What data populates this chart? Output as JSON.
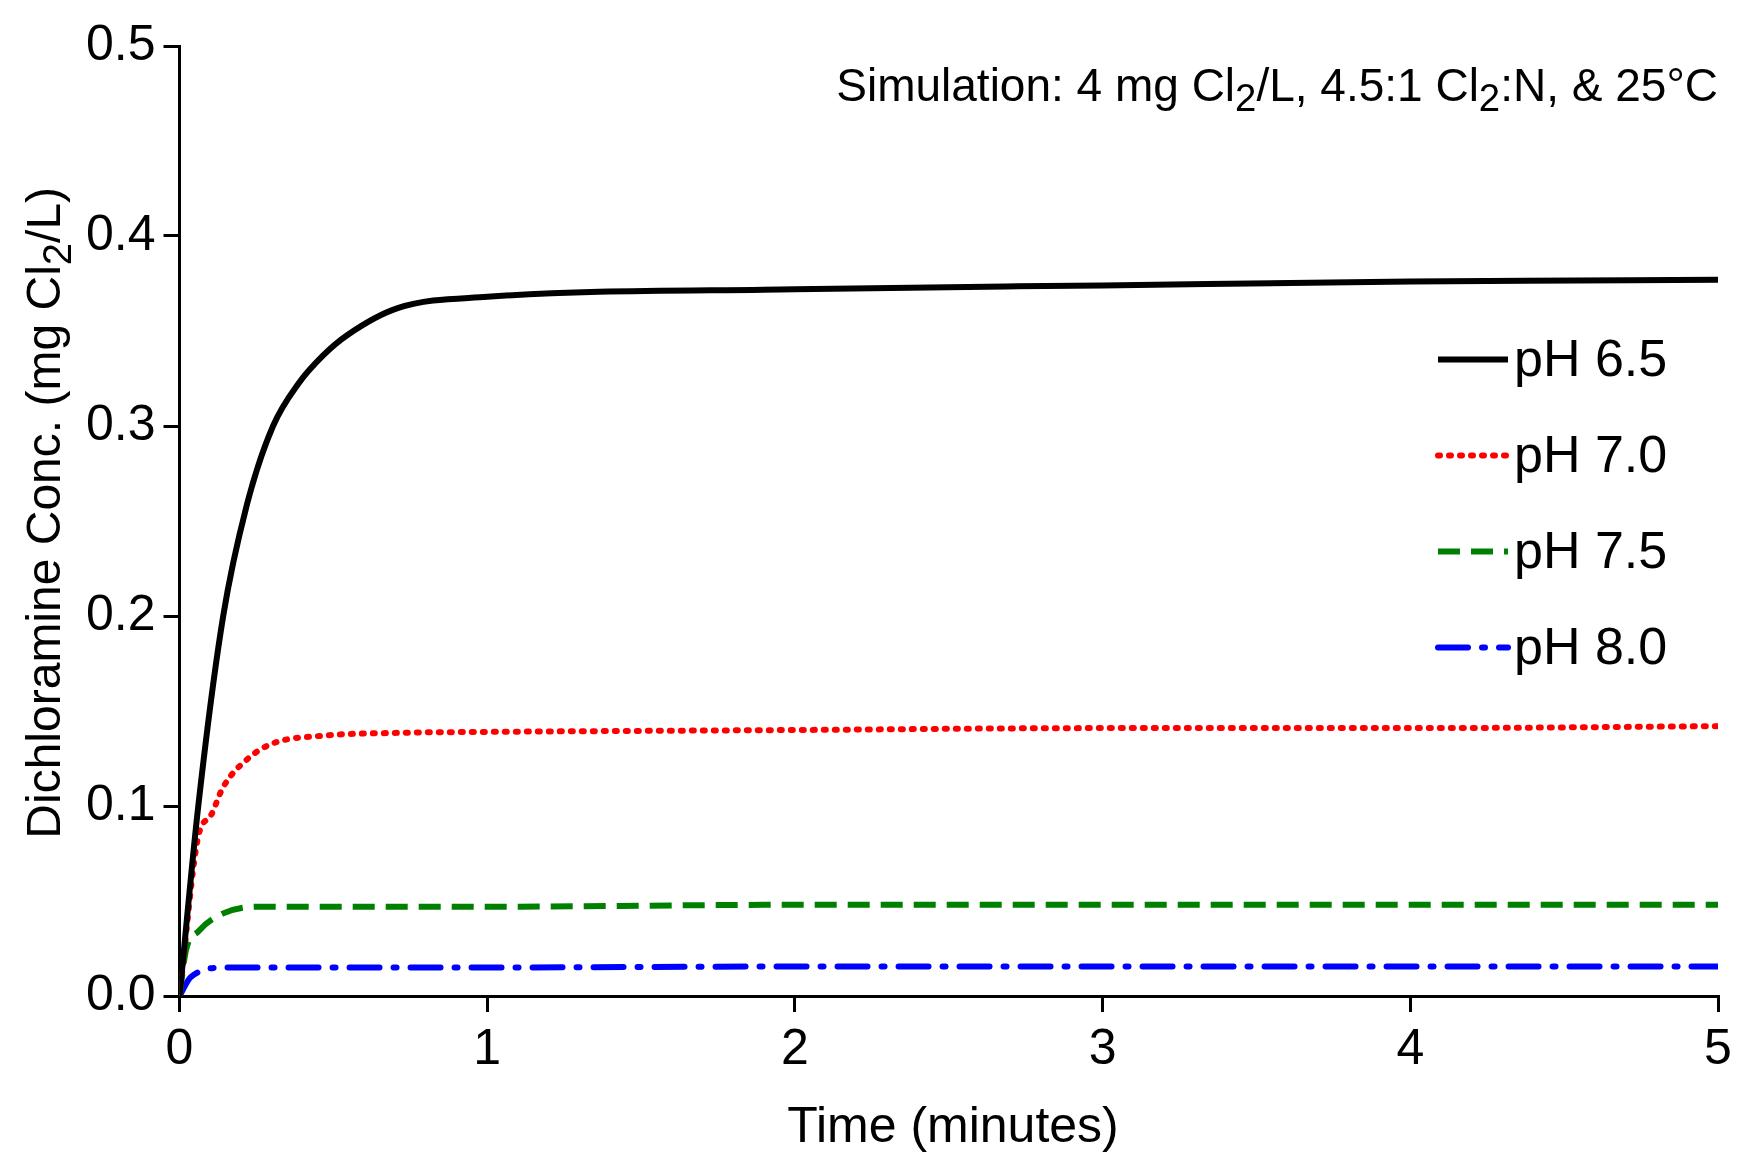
{
  "chart_data": {
    "type": "line",
    "xlabel": "Time (minutes)",
    "ylabel": "Dichloramine Conc. (mg Cl$_{2}$/L)",
    "annotations": [
      "Simulation: 4 mg Cl$_{2}$/L, 4.5:1 Cl$_{2}$:N, & 25°C"
    ],
    "xlim": [
      0,
      5
    ],
    "xticks": [
      0,
      1,
      2,
      3,
      4,
      5
    ],
    "ylim": [
      0,
      0.5
    ],
    "yticks": [
      {
        "value": 0,
        "label": "0.0"
      },
      0.1,
      0.2,
      0.3,
      0.4,
      0.5
    ],
    "grid": false,
    "legend": "right",
    "marker": "none",
    "series": [
      {
        "name": "pH 6.5",
        "color": "#000000",
        "line_style": "solid",
        "x": [
          0,
          0.061,
          0.142,
          0.223,
          0.304,
          0.385,
          0.466,
          0.547,
          0.709,
          1,
          2,
          3,
          4,
          5
        ],
        "values": [
          0,
          0.1,
          0.2,
          0.261,
          0.3,
          0.322,
          0.337,
          0.348,
          0.362,
          0.368,
          0.372,
          0.374,
          0.376,
          0.377
        ]
      },
      {
        "name": "pH 7.0",
        "color": "#ff0000",
        "line_style": "dotted",
        "x": [
          0,
          0.061,
          0.102,
          0.142,
          0.223,
          0.304,
          0.466,
          0.709,
          1,
          2,
          3,
          4,
          5
        ],
        "values": [
          0,
          0.084,
          0.095,
          0.11,
          0.125,
          0.133,
          0.137,
          0.1385,
          0.139,
          0.14,
          0.141,
          0.141,
          0.142
        ]
      },
      {
        "name": "pH 7.5",
        "color": "#008000",
        "line_style": "dashed",
        "x": [
          0,
          0.021,
          0.061,
          0.142,
          0.256,
          1,
          2,
          3,
          4,
          5
        ],
        "values": [
          0,
          0.024,
          0.034,
          0.0435,
          0.047,
          0.047,
          0.048,
          0.048,
          0.048,
          0.048
        ]
      },
      {
        "name": "pH 8.0",
        "color": "#0000ff",
        "line_style": "dashdot",
        "x": [
          0,
          0.037,
          0.15,
          1,
          2,
          3,
          4,
          5
        ],
        "values": [
          0,
          0.01,
          0.015,
          0.015,
          0.0155,
          0.0155,
          0.0155,
          0.0155
        ]
      }
    ]
  }
}
